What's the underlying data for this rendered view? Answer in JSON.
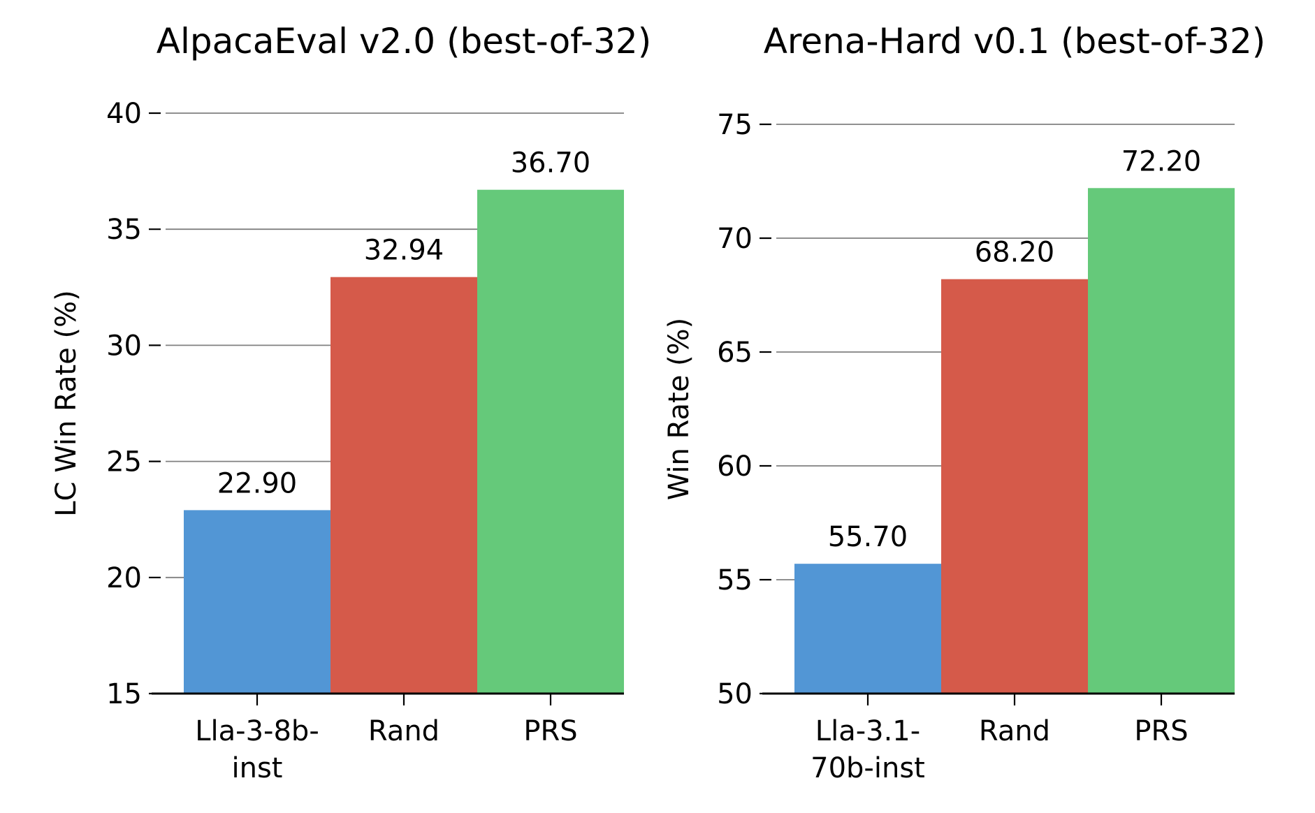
{
  "chart_data": [
    {
      "type": "bar",
      "title": "AlpacaEval v2.0 (best-of-32)",
      "ylabel": "LC Win Rate (%)",
      "xlabel": "",
      "categories": [
        [
          "Lla-3-8b-",
          "inst"
        ],
        [
          "Rand"
        ],
        [
          "PRS"
        ]
      ],
      "values": [
        22.9,
        32.94,
        36.7
      ],
      "value_labels": [
        "22.90",
        "32.94",
        "36.70"
      ],
      "ylim": [
        15,
        40
      ],
      "yticks": [
        15,
        20,
        25,
        30,
        35,
        40
      ],
      "colors": [
        "#5296d5",
        "#d55a4a",
        "#65c97a"
      ],
      "grid": "y"
    },
    {
      "type": "bar",
      "title": "Arena-Hard v0.1 (best-of-32)",
      "ylabel": "Win Rate (%)",
      "xlabel": "",
      "categories": [
        [
          "Lla-3.1-",
          "70b-inst"
        ],
        [
          "Rand"
        ],
        [
          "PRS"
        ]
      ],
      "values": [
        55.7,
        68.2,
        72.2
      ],
      "value_labels": [
        "55.70",
        "68.20",
        "72.20"
      ],
      "ylim": [
        50,
        75
      ],
      "yticks": [
        50,
        55,
        60,
        65,
        70,
        75
      ],
      "colors": [
        "#5296d5",
        "#d55a4a",
        "#65c97a"
      ],
      "grid": "y"
    }
  ]
}
